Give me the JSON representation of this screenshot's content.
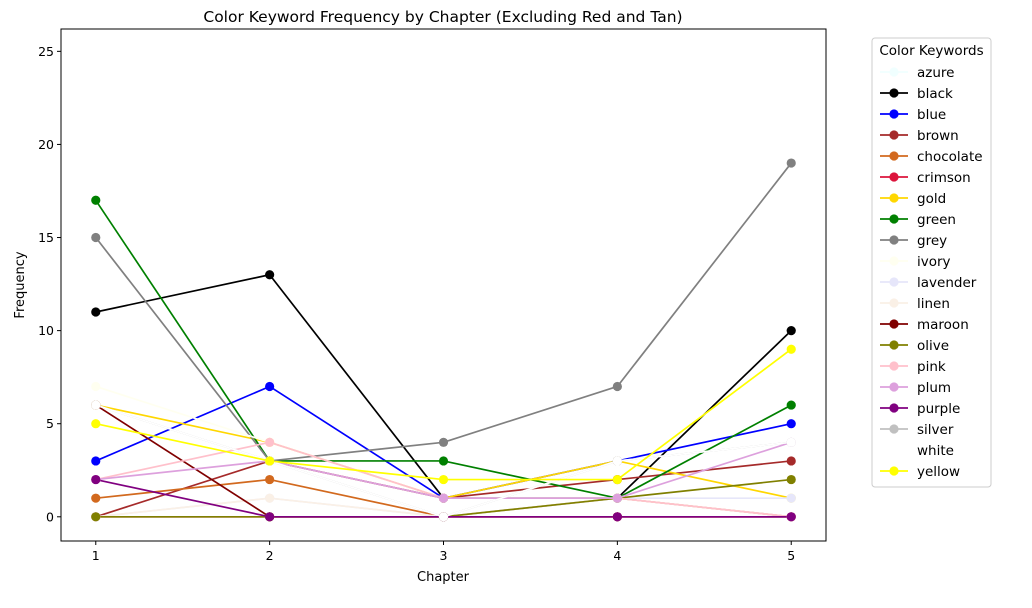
{
  "chart_data": {
    "type": "line",
    "title": "Color Keyword Frequency by Chapter (Excluding Red and Tan)",
    "xlabel": "Chapter",
    "ylabel": "Frequency",
    "x": [
      1,
      2,
      3,
      4,
      5
    ],
    "xticks": [
      "1",
      "2",
      "3",
      "4",
      "5"
    ],
    "yticks": [
      "0",
      "5",
      "10",
      "15",
      "20",
      "25"
    ],
    "xlim": [
      0.8,
      5.2
    ],
    "ylim": [
      -1.3,
      26.2
    ],
    "grid": false,
    "legend": {
      "title": "Color Keywords",
      "placement": "outside-right"
    },
    "series": [
      {
        "name": "azure",
        "color": "#F0FFFF",
        "values": [
          0,
          0,
          0,
          0,
          0
        ]
      },
      {
        "name": "black",
        "color": "#000000",
        "values": [
          11,
          13,
          1,
          1,
          10
        ]
      },
      {
        "name": "blue",
        "color": "#0000FF",
        "values": [
          3,
          7,
          1,
          3,
          5
        ]
      },
      {
        "name": "brown",
        "color": "#A52A2A",
        "values": [
          0,
          3,
          1,
          2,
          3
        ]
      },
      {
        "name": "chocolate",
        "color": "#D2691E",
        "values": [
          1,
          2,
          0,
          1,
          0
        ]
      },
      {
        "name": "crimson",
        "color": "#DC143C",
        "values": [
          0,
          0,
          0,
          0,
          0
        ]
      },
      {
        "name": "gold",
        "color": "#FFD700",
        "values": [
          6,
          4,
          1,
          3,
          1
        ]
      },
      {
        "name": "green",
        "color": "#008000",
        "values": [
          17,
          3,
          3,
          1,
          6
        ]
      },
      {
        "name": "grey",
        "color": "#808080",
        "values": [
          15,
          3,
          4,
          7,
          19
        ]
      },
      {
        "name": "ivory",
        "color": "#FFFFF0",
        "values": [
          7,
          4,
          1,
          1,
          1
        ]
      },
      {
        "name": "lavender",
        "color": "#E6E6FA",
        "values": [
          0,
          1,
          0,
          1,
          1
        ]
      },
      {
        "name": "linen",
        "color": "#FAF0E6",
        "values": [
          0,
          1,
          0,
          1,
          0
        ]
      },
      {
        "name": "maroon",
        "color": "#800000",
        "values": [
          6,
          0,
          0,
          0,
          0
        ]
      },
      {
        "name": "olive",
        "color": "#808000",
        "values": [
          0,
          0,
          0,
          1,
          2
        ]
      },
      {
        "name": "pink",
        "color": "#FFC0CB",
        "values": [
          2,
          4,
          1,
          1,
          0
        ]
      },
      {
        "name": "plum",
        "color": "#DDA0DD",
        "values": [
          2,
          3,
          1,
          1,
          4
        ]
      },
      {
        "name": "purple",
        "color": "#800080",
        "values": [
          2,
          0,
          0,
          0,
          0
        ]
      },
      {
        "name": "silver",
        "color": "#C0C0C0",
        "values": [
          6,
          3,
          0,
          3,
          4
        ]
      },
      {
        "name": "white",
        "color": "#FFFFFF",
        "values": [
          6,
          3,
          0,
          3,
          4
        ]
      },
      {
        "name": "yellow",
        "color": "#FFFF00",
        "values": [
          5,
          3,
          2,
          2,
          9
        ]
      }
    ]
  }
}
